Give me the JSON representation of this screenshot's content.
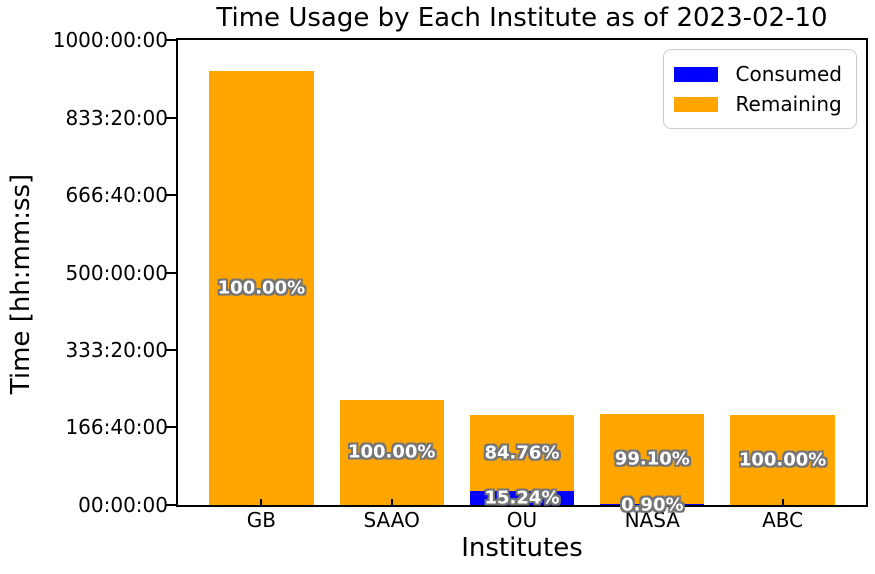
{
  "chart_data": {
    "type": "bar",
    "stacked": true,
    "title": "Time Usage by Each Institute as of 2023-02-10",
    "xlabel": "Institutes",
    "ylabel": "Time [hh:mm:ss]",
    "grid": false,
    "legend_position": "upper-right",
    "ylim_hours": [
      0,
      1000
    ],
    "yticks": [
      {
        "hours": 0,
        "label": "00:00:00"
      },
      {
        "hours": 166.6667,
        "label": "166:40:00"
      },
      {
        "hours": 333.3333,
        "label": "333:20:00"
      },
      {
        "hours": 500,
        "label": "500:00:00"
      },
      {
        "hours": 666.6667,
        "label": "666:40:00"
      },
      {
        "hours": 833.3333,
        "label": "833:20:00"
      },
      {
        "hours": 1000,
        "label": "1000:00:00"
      }
    ],
    "categories": [
      "GB",
      "SAAO",
      "OU",
      "NASA",
      "ABC"
    ],
    "totals_hours_est": [
      933,
      226,
      193.5,
      195.7,
      193.5
    ],
    "series": [
      {
        "name": "Consumed",
        "color": "#0000ff",
        "values_hours": [
          0,
          0,
          29.5,
          1.76,
          0
        ],
        "percent_labels": [
          "",
          "",
          "15.24%",
          "0.90%",
          ""
        ]
      },
      {
        "name": "Remaining",
        "color": "#ffa500",
        "values_hours": [
          933,
          226,
          164.0,
          193.9,
          193.5
        ],
        "percent_labels": [
          "100.00%",
          "100.00%",
          "84.76%",
          "99.10%",
          "100.00%"
        ]
      }
    ]
  },
  "colors": {
    "consumed": "#0000ff",
    "remaining": "#ffa500",
    "axis": "#000000",
    "label_outline": "#757575",
    "label_fill": "#ffffff"
  }
}
